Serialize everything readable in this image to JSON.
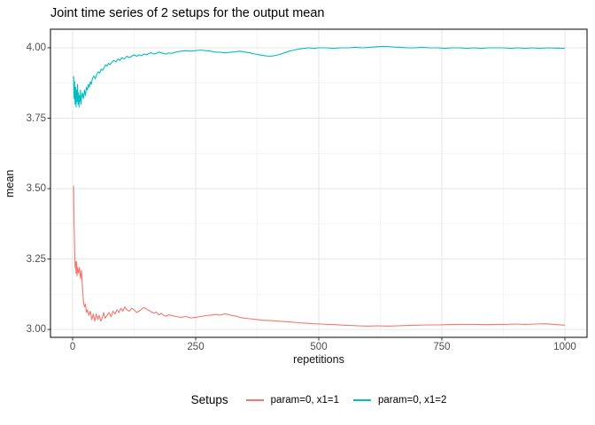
{
  "chart_data": {
    "type": "line",
    "title": "Joint time series of 2 setups for the output mean",
    "xlabel": "repetitions",
    "ylabel": "mean",
    "legend_title": "Setups",
    "legend_position": "bottom",
    "grid": true,
    "xlim": [
      -45,
      1045
    ],
    "ylim": [
      2.972,
      4.066
    ],
    "x_ticks": [
      {
        "value": 0,
        "label": "0"
      },
      {
        "value": 250,
        "label": "250"
      },
      {
        "value": 500,
        "label": "500"
      },
      {
        "value": 750,
        "label": "750"
      },
      {
        "value": 1000,
        "label": "1000"
      }
    ],
    "x_minor_ticks": [
      125,
      375,
      625,
      875
    ],
    "y_ticks": [
      {
        "value": 3.0,
        "label": "3.00"
      },
      {
        "value": 3.25,
        "label": "3.25"
      },
      {
        "value": 3.5,
        "label": "3.50"
      },
      {
        "value": 3.75,
        "label": "3.75"
      },
      {
        "value": 4.0,
        "label": "4.00"
      }
    ],
    "y_minor_ticks": [
      3.125,
      3.375,
      3.625,
      3.875
    ],
    "colors": {
      "grid_major": "#e6e6e6",
      "grid_minor": "#f1f1f1",
      "panel_border": "#2b2b2b",
      "tick_mark": "#333333",
      "tick_text": "#4d4d4d"
    },
    "series": [
      {
        "name": "param=0, x1=1",
        "color": "#F8766D",
        "points": [
          [
            2,
            3.51
          ],
          [
            3,
            3.37
          ],
          [
            4,
            3.3
          ],
          [
            5,
            3.22
          ],
          [
            6,
            3.24
          ],
          [
            7,
            3.2
          ],
          [
            8,
            3.24
          ],
          [
            9,
            3.19
          ],
          [
            10,
            3.22
          ],
          [
            12,
            3.2
          ],
          [
            14,
            3.22
          ],
          [
            16,
            3.18
          ],
          [
            18,
            3.21
          ],
          [
            20,
            3.15
          ],
          [
            22,
            3.1
          ],
          [
            24,
            3.08
          ],
          [
            26,
            3.09
          ],
          [
            28,
            3.06
          ],
          [
            30,
            3.07
          ],
          [
            33,
            3.05
          ],
          [
            36,
            3.065
          ],
          [
            39,
            3.035
          ],
          [
            42,
            3.055
          ],
          [
            45,
            3.03
          ],
          [
            48,
            3.055
          ],
          [
            51,
            3.035
          ],
          [
            54,
            3.05
          ],
          [
            57,
            3.03
          ],
          [
            60,
            3.04
          ],
          [
            63,
            3.06
          ],
          [
            66,
            3.04
          ],
          [
            70,
            3.05
          ],
          [
            74,
            3.06
          ],
          [
            78,
            3.045
          ],
          [
            82,
            3.065
          ],
          [
            86,
            3.055
          ],
          [
            90,
            3.07
          ],
          [
            94,
            3.06
          ],
          [
            98,
            3.075
          ],
          [
            102,
            3.065
          ],
          [
            106,
            3.08
          ],
          [
            110,
            3.07
          ],
          [
            115,
            3.065
          ],
          [
            120,
            3.075
          ],
          [
            125,
            3.07
          ],
          [
            130,
            3.06
          ],
          [
            135,
            3.065
          ],
          [
            140,
            3.072
          ],
          [
            145,
            3.078
          ],
          [
            150,
            3.072
          ],
          [
            155,
            3.068
          ],
          [
            160,
            3.062
          ],
          [
            165,
            3.058
          ],
          [
            170,
            3.062
          ],
          [
            175,
            3.052
          ],
          [
            180,
            3.057
          ],
          [
            185,
            3.05
          ],
          [
            190,
            3.047
          ],
          [
            195,
            3.052
          ],
          [
            200,
            3.05
          ],
          [
            210,
            3.046
          ],
          [
            220,
            3.043
          ],
          [
            230,
            3.046
          ],
          [
            240,
            3.041
          ],
          [
            250,
            3.043
          ],
          [
            260,
            3.046
          ],
          [
            270,
            3.049
          ],
          [
            280,
            3.051
          ],
          [
            290,
            3.053
          ],
          [
            300,
            3.051
          ],
          [
            310,
            3.056
          ],
          [
            320,
            3.051
          ],
          [
            330,
            3.048
          ],
          [
            340,
            3.043
          ],
          [
            350,
            3.04
          ],
          [
            360,
            3.038
          ],
          [
            370,
            3.036
          ],
          [
            380,
            3.034
          ],
          [
            390,
            3.032
          ],
          [
            400,
            3.032
          ],
          [
            415,
            3.03
          ],
          [
            430,
            3.028
          ],
          [
            445,
            3.026
          ],
          [
            460,
            3.024
          ],
          [
            475,
            3.022
          ],
          [
            490,
            3.02
          ],
          [
            505,
            3.019
          ],
          [
            520,
            3.018
          ],
          [
            535,
            3.017
          ],
          [
            550,
            3.015
          ],
          [
            565,
            3.014
          ],
          [
            580,
            3.013
          ],
          [
            600,
            3.012
          ],
          [
            620,
            3.013
          ],
          [
            640,
            3.012
          ],
          [
            660,
            3.013
          ],
          [
            680,
            3.014
          ],
          [
            700,
            3.015
          ],
          [
            720,
            3.016
          ],
          [
            740,
            3.016
          ],
          [
            760,
            3.017
          ],
          [
            780,
            3.018
          ],
          [
            800,
            3.018
          ],
          [
            820,
            3.018
          ],
          [
            840,
            3.017
          ],
          [
            860,
            3.018
          ],
          [
            880,
            3.018
          ],
          [
            900,
            3.019
          ],
          [
            920,
            3.018
          ],
          [
            940,
            3.019
          ],
          [
            960,
            3.02
          ],
          [
            980,
            3.018
          ],
          [
            1000,
            3.015
          ]
        ]
      },
      {
        "name": "param=0, x1=2",
        "color": "#00BFC4",
        "points": [
          [
            2,
            3.9
          ],
          [
            3,
            3.82
          ],
          [
            4,
            3.88
          ],
          [
            5,
            3.8
          ],
          [
            6,
            3.86
          ],
          [
            7,
            3.79
          ],
          [
            8,
            3.85
          ],
          [
            9,
            3.81
          ],
          [
            10,
            3.87
          ],
          [
            11,
            3.8
          ],
          [
            12,
            3.84
          ],
          [
            13,
            3.79
          ],
          [
            14,
            3.83
          ],
          [
            15,
            3.81
          ],
          [
            16,
            3.85
          ],
          [
            17,
            3.8
          ],
          [
            18,
            3.82
          ],
          [
            20,
            3.84
          ],
          [
            22,
            3.82
          ],
          [
            24,
            3.85
          ],
          [
            26,
            3.83
          ],
          [
            28,
            3.86
          ],
          [
            30,
            3.85
          ],
          [
            32,
            3.87
          ],
          [
            34,
            3.86
          ],
          [
            36,
            3.88
          ],
          [
            38,
            3.87
          ],
          [
            40,
            3.89
          ],
          [
            43,
            3.9
          ],
          [
            46,
            3.89
          ],
          [
            49,
            3.905
          ],
          [
            52,
            3.915
          ],
          [
            55,
            3.91
          ],
          [
            58,
            3.925
          ],
          [
            61,
            3.92
          ],
          [
            64,
            3.93
          ],
          [
            67,
            3.94
          ],
          [
            70,
            3.935
          ],
          [
            73,
            3.945
          ],
          [
            76,
            3.94
          ],
          [
            80,
            3.95
          ],
          [
            84,
            3.955
          ],
          [
            88,
            3.95
          ],
          [
            92,
            3.96
          ],
          [
            96,
            3.955
          ],
          [
            100,
            3.965
          ],
          [
            105,
            3.96
          ],
          [
            110,
            3.97
          ],
          [
            115,
            3.965
          ],
          [
            120,
            3.97
          ],
          [
            125,
            3.975
          ],
          [
            130,
            3.97
          ],
          [
            135,
            3.975
          ],
          [
            140,
            3.972
          ],
          [
            145,
            3.978
          ],
          [
            150,
            3.975
          ],
          [
            155,
            3.98
          ],
          [
            160,
            3.982
          ],
          [
            165,
            3.978
          ],
          [
            170,
            3.98
          ],
          [
            175,
            3.985
          ],
          [
            180,
            3.982
          ],
          [
            185,
            3.98
          ],
          [
            190,
            3.978
          ],
          [
            195,
            3.982
          ],
          [
            200,
            3.98
          ],
          [
            210,
            3.985
          ],
          [
            220,
            3.988
          ],
          [
            230,
            3.99
          ],
          [
            240,
            3.988
          ],
          [
            250,
            3.99
          ],
          [
            260,
            3.992
          ],
          [
            270,
            3.99
          ],
          [
            280,
            3.988
          ],
          [
            290,
            3.985
          ],
          [
            300,
            3.984
          ],
          [
            310,
            3.982
          ],
          [
            320,
            3.984
          ],
          [
            330,
            3.986
          ],
          [
            340,
            3.988
          ],
          [
            350,
            3.985
          ],
          [
            360,
            3.982
          ],
          [
            370,
            3.978
          ],
          [
            380,
            3.975
          ],
          [
            390,
            3.972
          ],
          [
            400,
            3.97
          ],
          [
            410,
            3.972
          ],
          [
            420,
            3.976
          ],
          [
            430,
            3.982
          ],
          [
            440,
            3.988
          ],
          [
            450,
            3.992
          ],
          [
            460,
            3.996
          ],
          [
            470,
            3.998
          ],
          [
            480,
            4.0
          ],
          [
            490,
            3.998
          ],
          [
            500,
            4.0
          ],
          [
            515,
            4.0
          ],
          [
            530,
            3.998
          ],
          [
            545,
            4.0
          ],
          [
            560,
            4.0
          ],
          [
            575,
            4.002
          ],
          [
            590,
            4.0
          ],
          [
            605,
            4.002
          ],
          [
            620,
            4.004
          ],
          [
            635,
            4.005
          ],
          [
            650,
            4.003
          ],
          [
            665,
            4.002
          ],
          [
            680,
            4.0
          ],
          [
            695,
            4.0
          ],
          [
            710,
            4.002
          ],
          [
            725,
            4.0
          ],
          [
            740,
            4.0
          ],
          [
            755,
            3.998
          ],
          [
            770,
            4.0
          ],
          [
            785,
            4.0
          ],
          [
            800,
            3.998
          ],
          [
            815,
            4.0
          ],
          [
            830,
            3.998
          ],
          [
            845,
            4.0
          ],
          [
            860,
            4.0
          ],
          [
            875,
            4.0
          ],
          [
            890,
            3.998
          ],
          [
            905,
            4.0
          ],
          [
            920,
            3.998
          ],
          [
            935,
            4.0
          ],
          [
            950,
            3.998
          ],
          [
            965,
            4.0
          ],
          [
            980,
            3.999
          ],
          [
            1000,
            3.998
          ]
        ]
      }
    ]
  }
}
